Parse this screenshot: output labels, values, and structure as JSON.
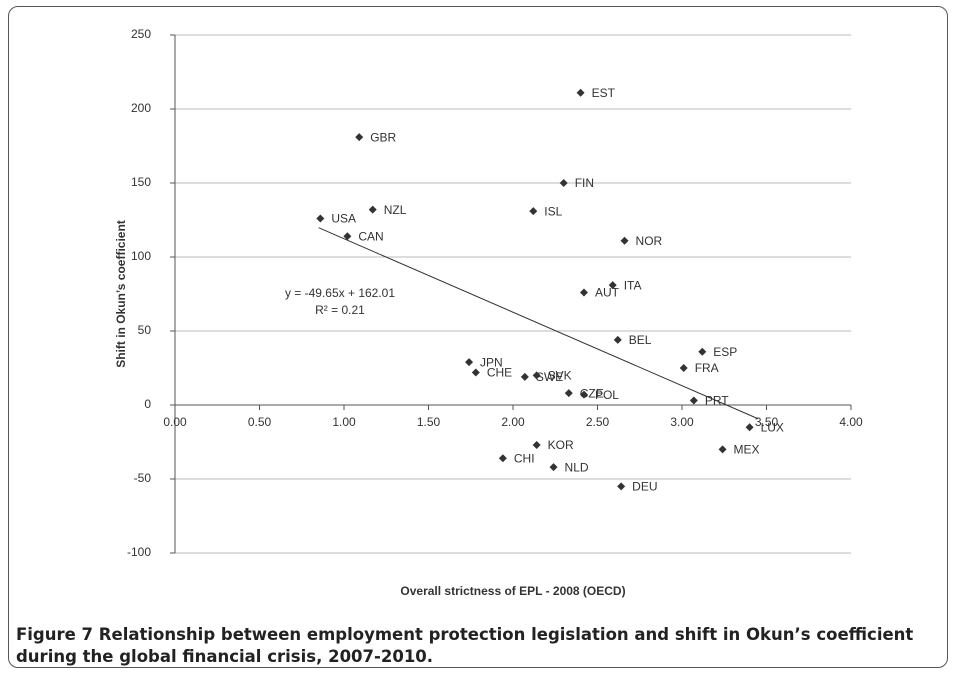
{
  "chart_data": {
    "type": "scatter",
    "x_label": "Overall strictness of EPL - 2008 (OECD)",
    "y_label": "Shift in Okun’s coefficient",
    "annotations": [
      "y = -49.65x + 162.01",
      "R² = 0.21"
    ],
    "labels": [
      "EST",
      "GBR",
      "FIN",
      "NZL",
      "ISL",
      "USA",
      "CAN",
      "NOR",
      "ITA",
      "AUT",
      "BEL",
      "ESP",
      "JPN",
      "FRA",
      "CHE",
      "SWE",
      "SVK",
      "CZE",
      "POL",
      "PRT",
      "LUX",
      "KOR",
      "MEX",
      "CHI",
      "NLD",
      "DEU"
    ],
    "x": [
      2.4,
      1.09,
      2.3,
      1.17,
      2.12,
      0.86,
      1.02,
      2.66,
      2.59,
      2.42,
      2.62,
      3.12,
      1.74,
      3.01,
      1.78,
      2.07,
      2.14,
      2.33,
      2.42,
      3.07,
      3.4,
      2.14,
      3.24,
      1.94,
      2.24,
      2.64
    ],
    "values": [
      211,
      181,
      150,
      132,
      131,
      126,
      114,
      111,
      81,
      76,
      44,
      36,
      29,
      25,
      22,
      19,
      20,
      8,
      7,
      3,
      -15,
      -27,
      -30,
      -36,
      -42,
      -55
    ],
    "color": "#333333",
    "trendline": {
      "x": [
        0.85,
        3.45
      ],
      "y": [
        119.8,
        -9.3
      ],
      "color": "#333333"
    },
    "xlim": [
      0,
      4
    ],
    "ylim": [
      -100,
      250
    ],
    "xticks": [
      {
        "value": 0,
        "label": "0.00"
      },
      {
        "value": 0.5,
        "label": "0.50"
      },
      {
        "value": 1,
        "label": "1.00"
      },
      {
        "value": 1.5,
        "label": "1.50"
      },
      {
        "value": 2,
        "label": "2.00"
      },
      {
        "value": 2.5,
        "label": "2.50"
      },
      {
        "value": 3,
        "label": "3.00"
      },
      {
        "value": 3.5,
        "label": "3.50"
      },
      {
        "value": 4,
        "label": "4.00"
      }
    ],
    "yticks": [
      -100,
      -50,
      0,
      50,
      100,
      150,
      200,
      250
    ],
    "grid": true
  },
  "caption_label": "Figure 7",
  "caption": "Relationship between employment protection legislation and shift in Okun’s coefficient during the global financial crisis, 2007-2010."
}
